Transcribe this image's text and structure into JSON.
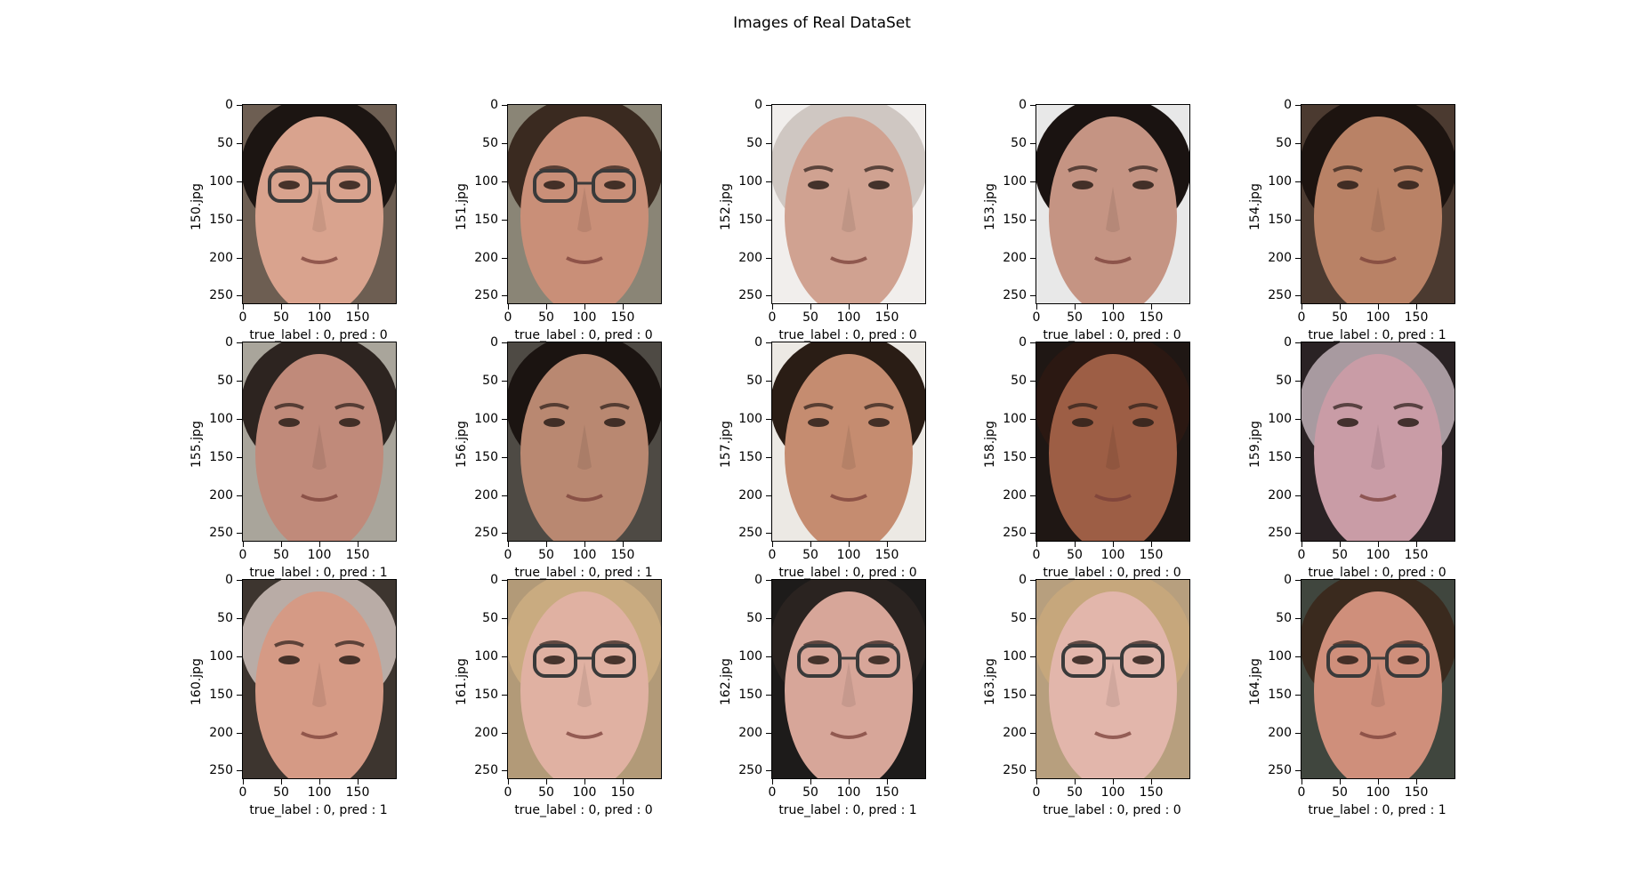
{
  "figure": {
    "title": "Images of Real DataSet"
  },
  "axes": {
    "y_ticks": [
      "0",
      "50",
      "100",
      "150",
      "200",
      "250"
    ],
    "y_tick_values": [
      0,
      50,
      100,
      150,
      200,
      250
    ],
    "x_ticks": [
      "0",
      "50",
      "100",
      "150"
    ],
    "x_tick_values": [
      0,
      50,
      100,
      150
    ],
    "x_range": [
      0,
      200
    ],
    "y_range": [
      0,
      260
    ]
  },
  "panels": [
    {
      "filename": "150.jpg",
      "true_label": 0,
      "pred": 0,
      "caption": "true_label : 0, pred : 0",
      "skin": "#d9a38e",
      "hair": "#1c1512",
      "bg": "#6d5e52",
      "glasses": true
    },
    {
      "filename": "151.jpg",
      "true_label": 0,
      "pred": 0,
      "caption": "true_label : 0, pred : 0",
      "skin": "#c98f78",
      "hair": "#3a2a20",
      "bg": "#8a8576",
      "glasses": true
    },
    {
      "filename": "152.jpg",
      "true_label": 0,
      "pred": 0,
      "caption": "true_label : 0, pred : 0",
      "skin": "#d0a291",
      "hair": "#cfc7c2",
      "bg": "#f1eeec",
      "glasses": false
    },
    {
      "filename": "153.jpg",
      "true_label": 0,
      "pred": 0,
      "caption": "true_label : 0, pred : 0",
      "skin": "#c59483",
      "hair": "#1a1311",
      "bg": "#e8e8e8",
      "glasses": false
    },
    {
      "filename": "154.jpg",
      "true_label": 0,
      "pred": 1,
      "caption": "true_label : 0, pred : 1",
      "skin": "#b98266",
      "hair": "#1d1410",
      "bg": "#4b3a30",
      "glasses": false
    },
    {
      "filename": "155.jpg",
      "true_label": 0,
      "pred": 1,
      "caption": "true_label : 0, pred : 1",
      "skin": "#c08a7a",
      "hair": "#2d2420",
      "bg": "#a9a59b",
      "glasses": false
    },
    {
      "filename": "156.jpg",
      "true_label": 0,
      "pred": 1,
      "caption": "true_label : 0, pred : 1",
      "skin": "#b98871",
      "hair": "#1b1411",
      "bg": "#4e4a44",
      "glasses": false
    },
    {
      "filename": "157.jpg",
      "true_label": 0,
      "pred": 0,
      "caption": "true_label : 0, pred : 0",
      "skin": "#c58c70",
      "hair": "#2a1d15",
      "bg": "#ece9e4",
      "glasses": false
    },
    {
      "filename": "158.jpg",
      "true_label": 0,
      "pred": 0,
      "caption": "true_label : 0, pred : 0",
      "skin": "#9d5e45",
      "hair": "#2b1812",
      "bg": "#1f1714",
      "glasses": false
    },
    {
      "filename": "159.jpg",
      "true_label": 0,
      "pred": 0,
      "caption": "true_label : 0, pred : 0",
      "skin": "#c99ca6",
      "hair": "#a89aa0",
      "bg": "#2a2224",
      "glasses": false
    },
    {
      "filename": "160.jpg",
      "true_label": 0,
      "pred": 1,
      "caption": "true_label : 0, pred : 1",
      "skin": "#d59a85",
      "hair": "#b9aca6",
      "bg": "#3d352f",
      "glasses": false
    },
    {
      "filename": "161.jpg",
      "true_label": 0,
      "pred": 0,
      "caption": "true_label : 0, pred : 0",
      "skin": "#e0b1a2",
      "hair": "#c9ab80",
      "bg": "#b29a78",
      "glasses": true
    },
    {
      "filename": "162.jpg",
      "true_label": 0,
      "pred": 1,
      "caption": "true_label : 0, pred : 1",
      "skin": "#d7a699",
      "hair": "#2a2320",
      "bg": "#1d1b1a",
      "glasses": true
    },
    {
      "filename": "163.jpg",
      "true_label": 0,
      "pred": 0,
      "caption": "true_label : 0, pred : 0",
      "skin": "#e2b6ab",
      "hair": "#c6a77c",
      "bg": "#b79f7e",
      "glasses": true
    },
    {
      "filename": "164.jpg",
      "true_label": 0,
      "pred": 1,
      "caption": "true_label : 0, pred : 1",
      "skin": "#cf8f7b",
      "hair": "#3a2a1e",
      "bg": "#40463e",
      "glasses": true
    }
  ]
}
